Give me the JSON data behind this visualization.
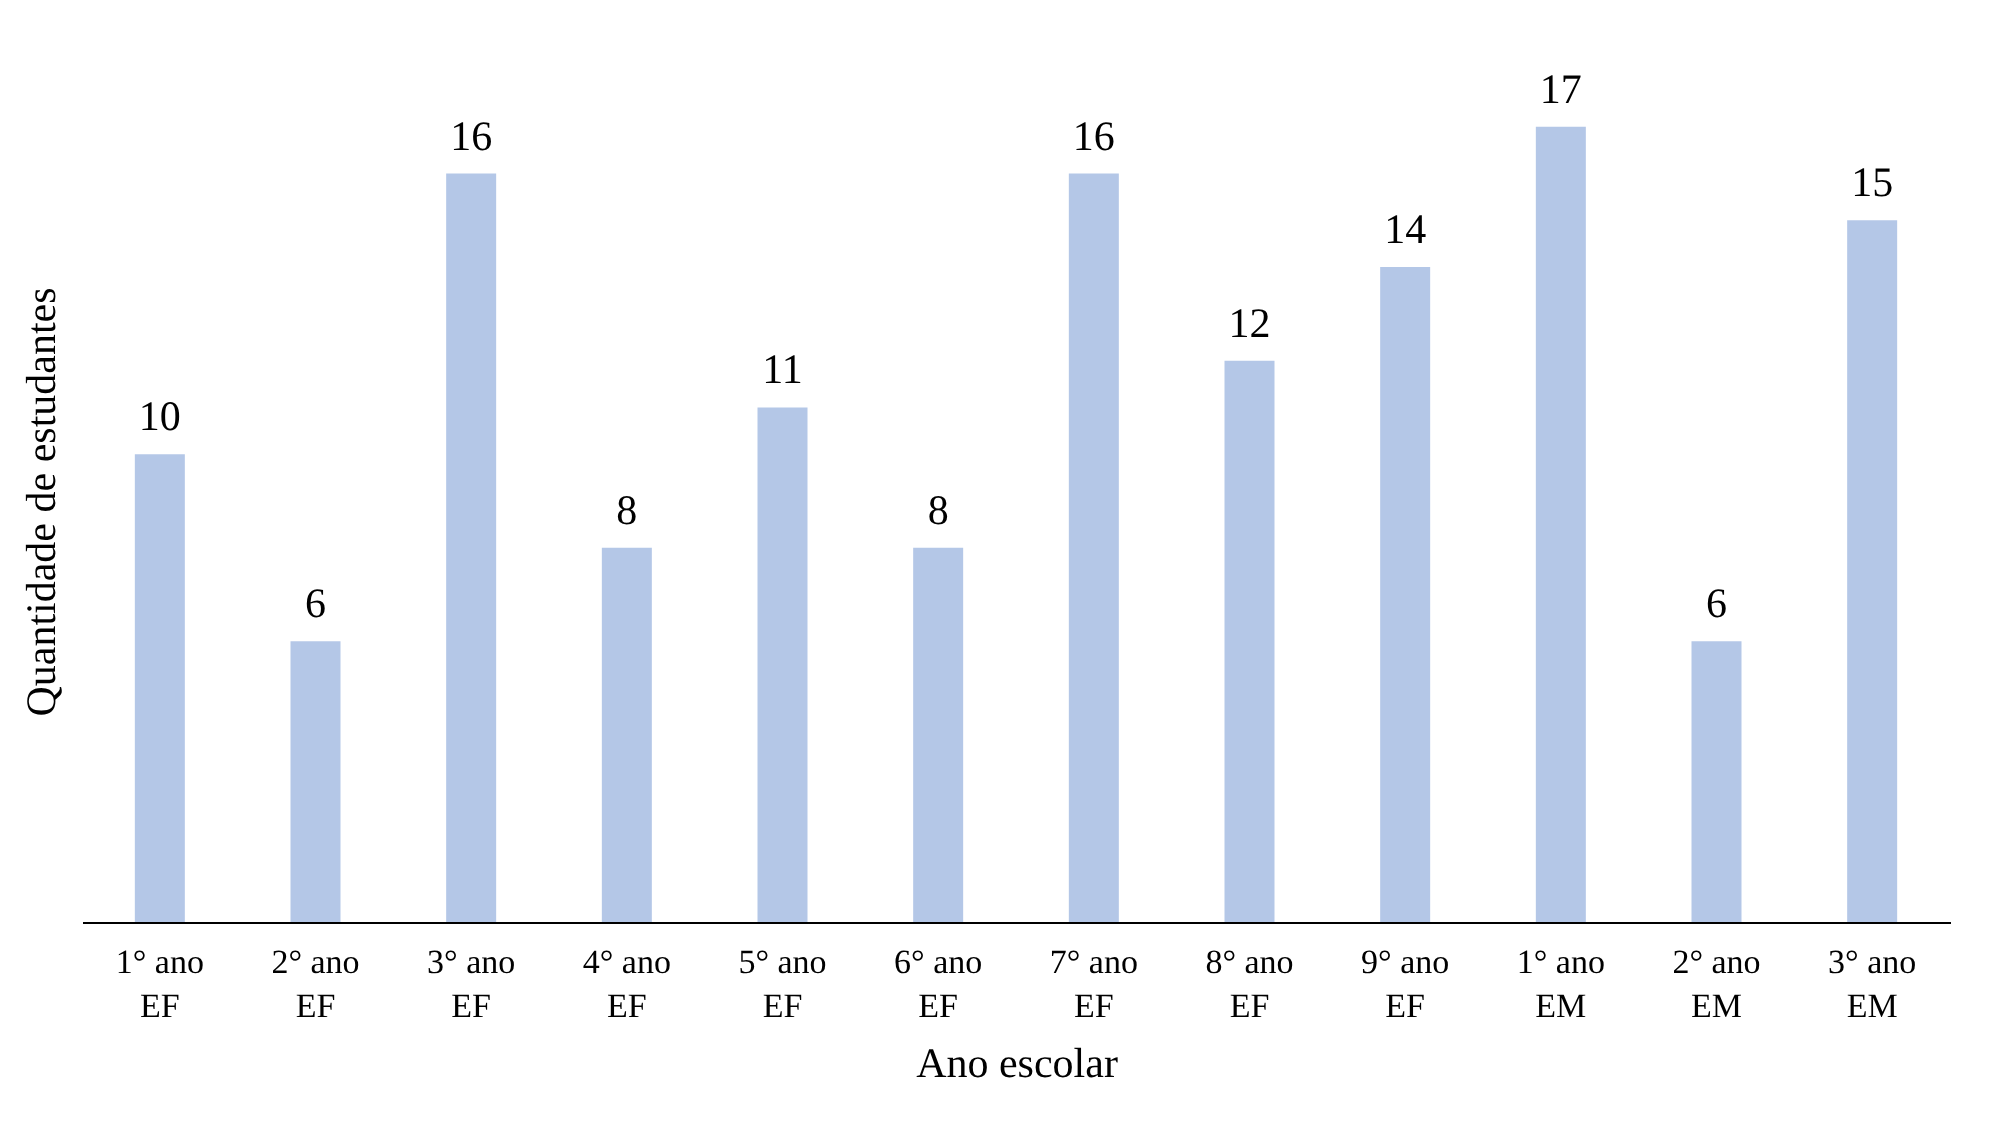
{
  "chart_data": {
    "type": "bar",
    "xlabel": "Ano escolar",
    "ylabel": "Quantidade  de estudantes",
    "categories": [
      "1° ano\nEF",
      "2° ano\nEF",
      "3° ano\nEF",
      "4° ano\nEF",
      "5° ano\nEF",
      "6° ano\nEF",
      "7° ano\nEF",
      "8° ano\nEF",
      "9° ano\nEF",
      "1° ano\nEM",
      "2° ano\nEM",
      "3° ano\nEM"
    ],
    "values": [
      10,
      6,
      16,
      8,
      11,
      8,
      16,
      12,
      14,
      17,
      6,
      15
    ],
    "color": "#b4c7e7",
    "data_labels": true,
    "grid": false,
    "tick_labels": "x"
  }
}
